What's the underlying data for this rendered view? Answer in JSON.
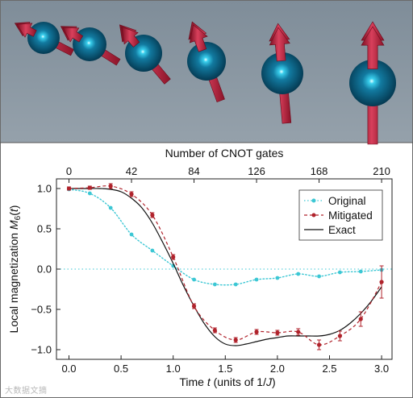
{
  "chart_data": {
    "type": "line",
    "top_axis_label": "Number of CNOT gates",
    "top_ticks": [
      "0",
      "42",
      "84",
      "126",
      "168",
      "210"
    ],
    "xlabel_parts": [
      "Time ",
      "t",
      " (units of 1/",
      "J",
      ")"
    ],
    "ylabel_parts": [
      "Local magnetization ",
      "M",
      "6",
      "(",
      "t",
      ")"
    ],
    "xlim": [
      -0.12,
      3.1
    ],
    "ylim": [
      -1.12,
      1.12
    ],
    "xticks": [
      0.0,
      0.5,
      1.0,
      1.5,
      2.0,
      2.5,
      3.0
    ],
    "xtick_labels": [
      "0.0",
      "0.5",
      "1.0",
      "1.5",
      "2.0",
      "2.5",
      "3.0"
    ],
    "yticks": [
      1.0,
      0.5,
      0.0,
      -0.5,
      -1.0
    ],
    "ytick_labels": [
      "1.0",
      "0.5",
      "0.0",
      "−0.5",
      "−1.0"
    ],
    "legend_position": "top-right",
    "series": [
      {
        "name": "Original",
        "style": "dotted-markers",
        "color": "#3cc7d4",
        "x": [
          0.0,
          0.2,
          0.4,
          0.6,
          0.8,
          1.0,
          1.2,
          1.4,
          1.6,
          1.8,
          2.0,
          2.2,
          2.4,
          2.6,
          2.8,
          3.0
        ],
        "y": [
          0.99,
          0.94,
          0.76,
          0.43,
          0.23,
          0.04,
          -0.13,
          -0.19,
          -0.19,
          -0.13,
          -0.11,
          -0.06,
          -0.09,
          -0.04,
          -0.03,
          -0.01
        ]
      },
      {
        "name": "Mitigated",
        "style": "dashed-markers-errorbars",
        "color": "#b0232c",
        "x": [
          0.0,
          0.2,
          0.4,
          0.6,
          0.8,
          1.0,
          1.2,
          1.4,
          1.6,
          1.8,
          2.0,
          2.2,
          2.4,
          2.6,
          2.8,
          3.0
        ],
        "y": [
          1.0,
          1.01,
          1.03,
          0.93,
          0.67,
          0.15,
          -0.46,
          -0.76,
          -0.88,
          -0.78,
          -0.79,
          -0.78,
          -0.94,
          -0.83,
          -0.62,
          -0.16
        ],
        "err": [
          0.02,
          0.02,
          0.03,
          0.03,
          0.03,
          0.03,
          0.03,
          0.03,
          0.03,
          0.03,
          0.03,
          0.04,
          0.06,
          0.06,
          0.09,
          0.2
        ]
      },
      {
        "name": "Exact",
        "style": "solid",
        "color": "#111111",
        "x": [
          0.0,
          0.1,
          0.2,
          0.3,
          0.4,
          0.5,
          0.6,
          0.7,
          0.8,
          0.9,
          1.0,
          1.1,
          1.2,
          1.3,
          1.4,
          1.5,
          1.6,
          1.7,
          1.8,
          1.9,
          2.0,
          2.1,
          2.2,
          2.3,
          2.4,
          2.5,
          2.6,
          2.7,
          2.8,
          2.9,
          3.0
        ],
        "y": [
          1.0,
          1.0,
          1.0,
          1.0,
          0.99,
          0.96,
          0.88,
          0.76,
          0.57,
          0.33,
          0.07,
          -0.21,
          -0.46,
          -0.68,
          -0.84,
          -0.93,
          -0.95,
          -0.93,
          -0.9,
          -0.87,
          -0.85,
          -0.83,
          -0.83,
          -0.83,
          -0.83,
          -0.81,
          -0.76,
          -0.67,
          -0.55,
          -0.4,
          -0.22
        ]
      }
    ]
  },
  "illustration": {
    "background": "#8b98a3",
    "sphere_color": "#0b5a79",
    "arrow_color": "#bf2545"
  },
  "watermark": "大数据文摘"
}
